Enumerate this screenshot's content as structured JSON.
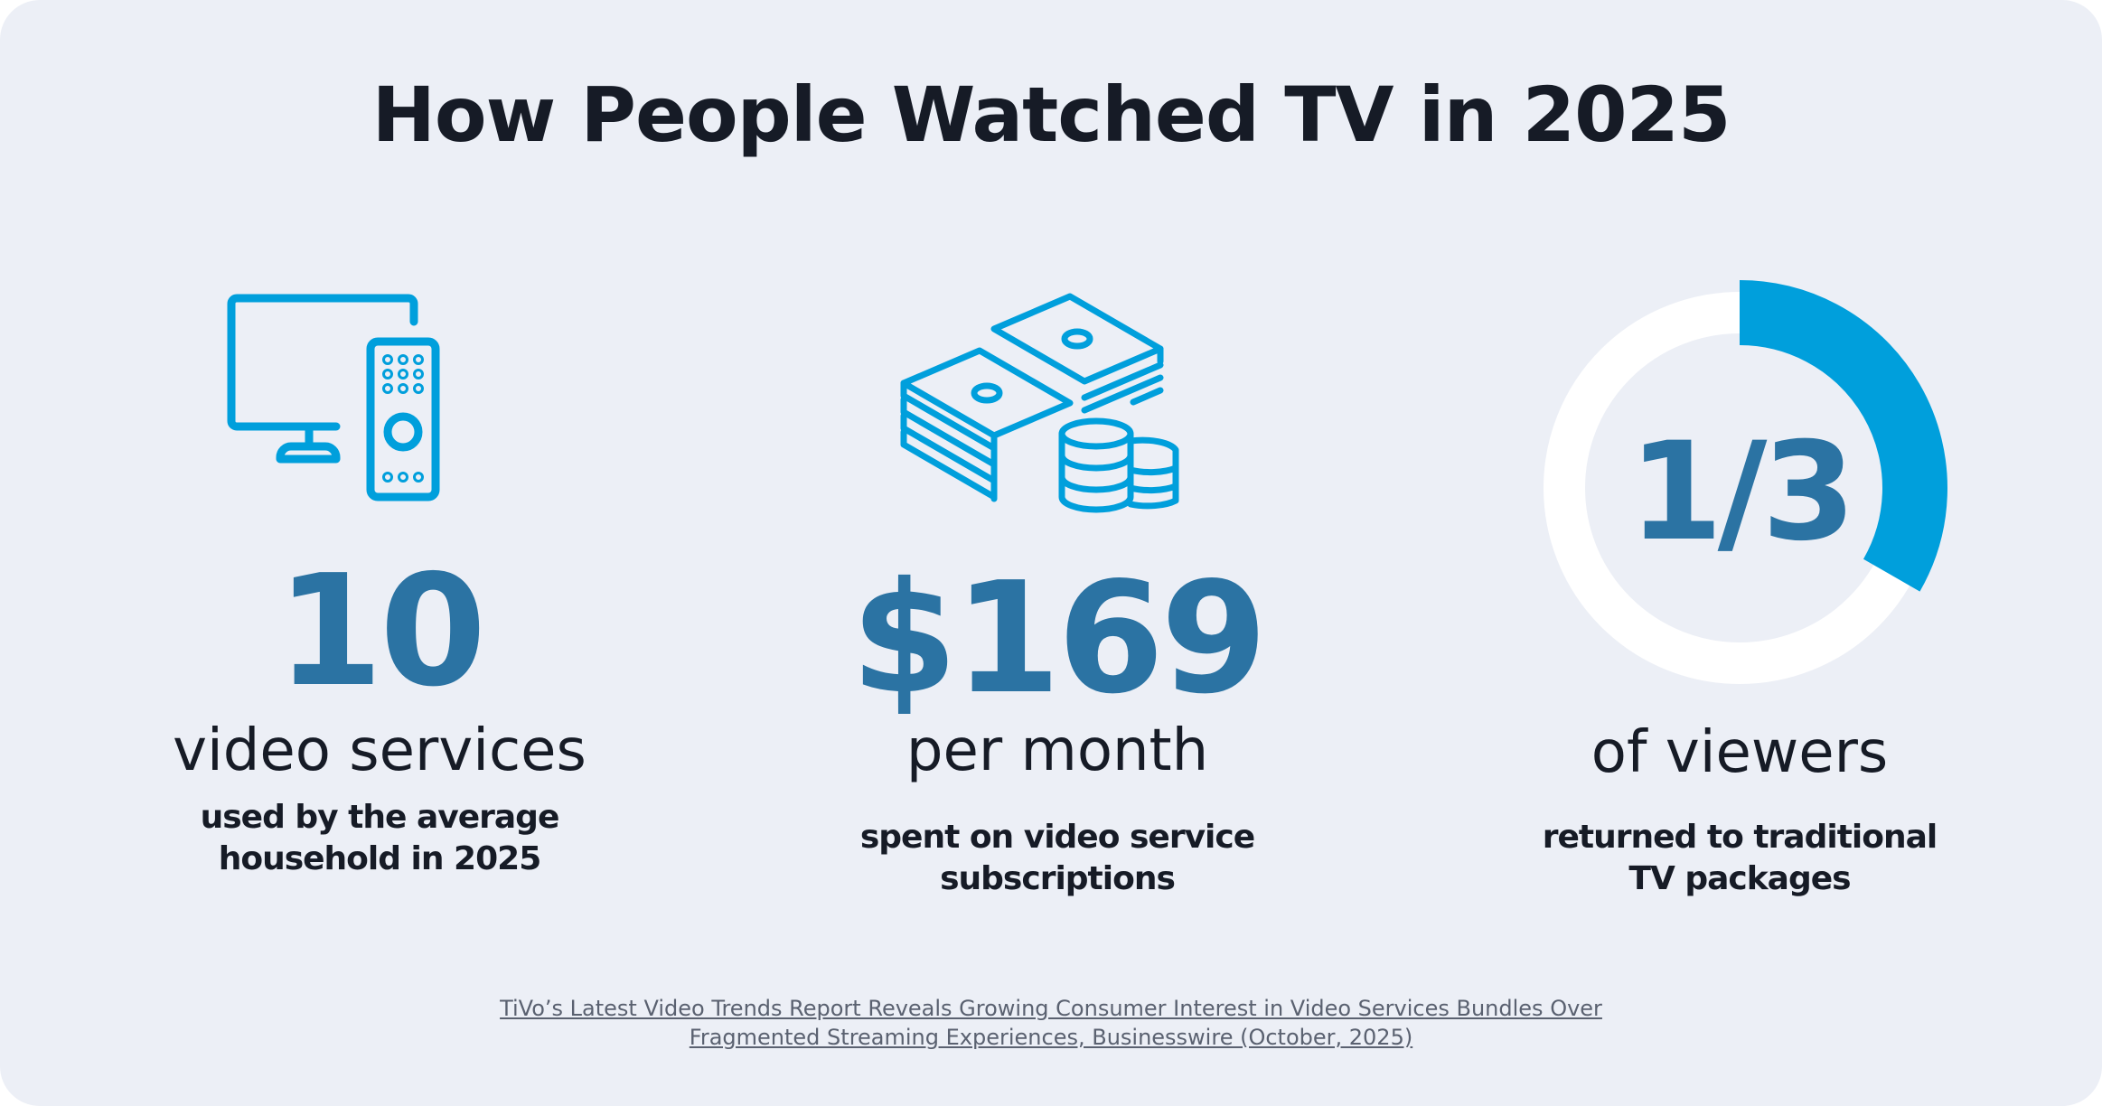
{
  "title": "How People Watched TV in 2025",
  "stats": [
    {
      "icon": "tv-remote-icon",
      "value": "10",
      "unit": "video services",
      "desc_line1": "used by the average",
      "desc_line2": "household in 2025"
    },
    {
      "icon": "cash-coins-icon",
      "value": "$169",
      "unit": "per month",
      "desc_line1": "spent on video service",
      "desc_line2": "subscriptions"
    },
    {
      "icon": "donut-progress",
      "value": "1/3",
      "fraction": 0.333,
      "unit": "of viewers",
      "desc_line1": "returned to traditional",
      "desc_line2": "TV packages"
    }
  ],
  "source": {
    "line1": "TiVo’s Latest Video Trends Report Reveals Growing Consumer Interest in Video Services Bundles Over",
    "line2": "Fragmented Streaming Experiences, Businesswire (October, 2025)"
  },
  "colors": {
    "accent": "#009fdc",
    "number": "#2b73a3",
    "text": "#161b26",
    "background": "#eceff6",
    "ring_track": "#ffffff"
  }
}
